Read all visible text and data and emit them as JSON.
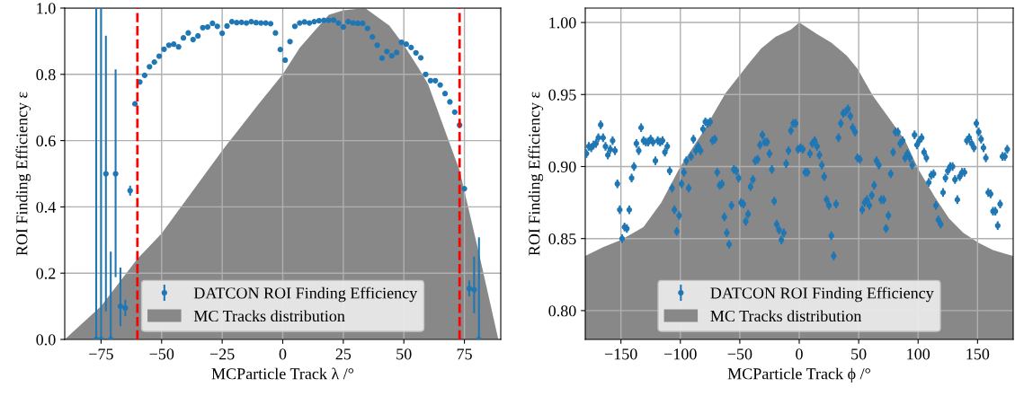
{
  "chart_data": [
    {
      "type": "scatter",
      "xlabel": "MCParticle Track λ /°",
      "ylabel": "ROI Finding Efficiency ε",
      "xlim": [
        -90,
        90
      ],
      "xticks": [
        {
          "value": -75,
          "label": "−75"
        },
        {
          "value": -50,
          "label": "−50"
        },
        {
          "value": -25,
          "label": "−25"
        },
        0,
        25,
        50,
        75
      ],
      "ylim": [
        0,
        1.0
      ],
      "yticks": [
        {
          "value": 0,
          "label": "0.0"
        },
        0.2,
        0.4,
        0.6,
        0.8,
        {
          "value": 1.0,
          "label": "1.0"
        }
      ],
      "grid": true,
      "legend": "bottom",
      "ref_lines": [
        {
          "axis": "x",
          "value": -60,
          "color": "#ff0000",
          "line_style": "dashed"
        },
        {
          "axis": "x",
          "value": 73,
          "color": "#ff0000",
          "line_style": "dashed"
        }
      ],
      "series": [
        {
          "type": "area",
          "name": "MC Tracks distribution",
          "color": "#888888",
          "x": [
            -90,
            -75,
            -60,
            -50,
            -25,
            -10,
            0,
            7,
            13,
            19,
            25,
            34,
            44,
            50,
            56,
            60,
            68,
            73,
            81,
            89
          ],
          "values": [
            0,
            0.1,
            0.243,
            0.32,
            0.57,
            0.71,
            0.8,
            0.88,
            0.93,
            0.98,
            0.993,
            1.0,
            0.947,
            0.888,
            0.82,
            0.77,
            0.61,
            0.51,
            0.26,
            0
          ]
        },
        {
          "name": "DATCON ROI Finding Efficiency",
          "color": "#1f77b4",
          "marker": "circle",
          "x": [
            -77,
            -75,
            -73,
            -71,
            -69,
            -67,
            -65,
            -63,
            -61,
            -59,
            -57,
            -55,
            -53,
            -51,
            -49,
            -47,
            -45,
            -43,
            -41,
            -39,
            -37,
            -35,
            -33,
            -31,
            -29,
            -27,
            -25,
            -23,
            -21,
            -19,
            -17,
            -15,
            -13,
            -11,
            -9,
            -7,
            -5,
            -3,
            -1,
            1,
            3,
            5,
            7,
            9,
            11,
            13,
            15,
            17,
            19,
            21,
            23,
            25,
            27,
            29,
            31,
            33,
            35,
            37,
            39,
            41,
            43,
            45,
            47,
            49,
            51,
            53,
            55,
            57,
            59,
            61,
            63,
            65,
            67,
            69,
            71,
            73,
            75,
            77,
            79,
            81
          ],
          "values": [
            0,
            0,
            0.5,
            0,
            0.5,
            0.1,
            0.095,
            0.449,
            0.711,
            0.777,
            0.797,
            0.823,
            0.837,
            0.855,
            0.876,
            0.888,
            0.891,
            0.883,
            0.91,
            0.925,
            0.905,
            0.916,
            0.941,
            0.943,
            0.954,
            0.945,
            0.924,
            0.946,
            0.959,
            0.956,
            0.957,
            0.955,
            0.959,
            0.956,
            0.955,
            0.955,
            0.953,
            0.925,
            0.875,
            0.843,
            0.899,
            0.945,
            0.955,
            0.958,
            0.955,
            0.959,
            0.962,
            0.963,
            0.963,
            0.964,
            0.955,
            0.943,
            0.959,
            0.955,
            0.954,
            0.954,
            0.939,
            0.913,
            0.888,
            0.849,
            0.869,
            0.856,
            0.866,
            0.897,
            0.891,
            0.881,
            0.865,
            0.85,
            0.8,
            0.781,
            0.781,
            0.768,
            0.742,
            0.717,
            0.686,
            0.647,
            0.455,
            0.154,
            0.15,
            0
          ],
          "errors": [
            [
              0,
              1
            ],
            [
              0,
              1
            ],
            [
              0.085,
              0.917
            ],
            [
              0,
              0.265
            ],
            [
              0.188,
              0.815
            ],
            [
              0.04,
              0.217
            ],
            0.025,
            0.015,
            null,
            null,
            null,
            null,
            null,
            null,
            null,
            null,
            null,
            null,
            null,
            null,
            null,
            null,
            null,
            null,
            null,
            null,
            null,
            null,
            null,
            null,
            null,
            null,
            null,
            null,
            null,
            null,
            null,
            null,
            null,
            null,
            null,
            null,
            null,
            null,
            null,
            null,
            null,
            null,
            null,
            null,
            null,
            null,
            null,
            null,
            null,
            null,
            null,
            null,
            null,
            null,
            null,
            null,
            null,
            null,
            null,
            null,
            null,
            null,
            null,
            null,
            null,
            null,
            null,
            null,
            null,
            null,
            null,
            0.024,
            [
              0.079,
              0.25
            ],
            [
              0,
              0.308
            ]
          ]
        }
      ]
    },
    {
      "type": "scatter",
      "xlabel": "MCParticle Track ϕ /°",
      "ylabel": "ROI Finding Efficiency ε",
      "xlim": [
        -180,
        180
      ],
      "xticks": [
        {
          "value": -150,
          "label": "−150"
        },
        {
          "value": -100,
          "label": "−100"
        },
        {
          "value": -50,
          "label": "−50"
        },
        0,
        50,
        100,
        150
      ],
      "ylim": [
        0.78,
        1.01
      ],
      "yticks": [
        {
          "value": 0.8,
          "label": "0.80"
        },
        0.85,
        {
          "value": 0.9,
          "label": "0.90"
        },
        0.95,
        {
          "value": 1.0,
          "label": "1.00"
        }
      ],
      "grid": true,
      "legend": "bottom",
      "series": [
        {
          "type": "area",
          "name": "MC Tracks distribution",
          "color": "#888888",
          "x": [
            -180,
            -165,
            -150,
            -131,
            -116,
            -100,
            -81,
            -62,
            -42,
            -32,
            -20,
            -7,
            0,
            15,
            27,
            40,
            49,
            62,
            77,
            89,
            101,
            114,
            126,
            138,
            151,
            163,
            175,
            180
          ],
          "values": [
            0.838,
            0.844,
            0.849,
            0.858,
            0.875,
            0.9,
            0.924,
            0.951,
            0.972,
            0.982,
            0.99,
            0.995,
            1.0,
            0.992,
            0.986,
            0.977,
            0.968,
            0.949,
            0.932,
            0.918,
            0.897,
            0.879,
            0.864,
            0.854,
            0.847,
            0.842,
            0.839,
            0.838
          ]
        },
        {
          "name": "DATCON ROI Finding Efficiency",
          "color": "#1f77b4",
          "marker": "circle",
          "x": [
            -179,
            -177,
            -175,
            -173,
            -171,
            -169,
            -167,
            -165,
            -163,
            -161,
            -159,
            -157,
            -155,
            -153,
            -151,
            -149,
            -147,
            -145,
            -143,
            -141,
            -139,
            -137,
            -135,
            -133,
            -131,
            -129,
            -127,
            -125,
            -123,
            -121,
            -119,
            -117,
            -115,
            -113,
            -111,
            -109,
            -107,
            -105,
            -103,
            -101,
            -99,
            -97,
            -95,
            -93,
            -91,
            -89,
            -87,
            -85,
            -83,
            -81,
            -79,
            -77,
            -75,
            -73,
            -71,
            -69,
            -67,
            -65,
            -63,
            -61,
            -59,
            -57,
            -55,
            -53,
            -51,
            -49,
            -47,
            -45,
            -43,
            -41,
            -39,
            -37,
            -35,
            -33,
            -31,
            -29,
            -27,
            -25,
            -23,
            -21,
            -19,
            -17,
            -15,
            -13,
            -11,
            -9,
            -7,
            -5,
            -3,
            -1,
            1,
            3,
            5,
            7,
            9,
            11,
            13,
            15,
            17,
            19,
            21,
            23,
            25,
            27,
            29,
            31,
            33,
            35,
            37,
            39,
            41,
            43,
            45,
            47,
            49,
            51,
            53,
            55,
            57,
            59,
            61,
            63,
            65,
            67,
            69,
            71,
            73,
            75,
            77,
            79,
            81,
            83,
            85,
            87,
            89,
            91,
            93,
            95,
            97,
            99,
            101,
            103,
            105,
            107,
            109,
            111,
            113,
            115,
            117,
            119,
            121,
            123,
            125,
            127,
            129,
            131,
            133,
            135,
            137,
            139,
            141,
            143,
            145,
            147,
            149,
            151,
            153,
            155,
            157,
            159,
            161,
            163,
            165,
            167,
            169,
            171,
            173,
            175
          ],
          "values": [
            0.909,
            0.914,
            0.913,
            0.915,
            0.916,
            0.92,
            0.929,
            0.92,
            0.914,
            0.908,
            0.912,
            0.918,
            0.911,
            0.888,
            0.87,
            0.85,
            0.858,
            0.857,
            0.87,
            0.892,
            0.9,
            0.916,
            0.911,
            0.927,
            0.918,
            0.917,
            0.917,
            0.919,
            0.917,
            0.904,
            0.918,
            0.917,
            0.918,
            0.91,
            0.914,
            0.897,
            0.885,
            0.87,
            0.855,
            0.866,
            0.888,
            0.896,
            0.904,
            0.885,
            0.907,
            0.919,
            0.911,
            0.914,
            0.911,
            0.926,
            0.931,
            0.93,
            0.931,
            0.918,
            0.919,
            0.896,
            0.887,
            0.888,
            0.865,
            0.854,
            0.846,
            0.873,
            0.898,
            0.897,
            0.892,
            0.875,
            0.874,
            0.862,
            0.867,
            0.886,
            0.891,
            0.904,
            0.905,
            0.915,
            0.922,
            0.917,
            0.917,
            0.909,
            0.898,
            0.876,
            0.86,
            0.856,
            0.849,
            0.854,
            0.902,
            0.911,
            0.925,
            0.93,
            0.93,
            0.912,
            0.913,
            0.912,
            0.896,
            0.896,
            0.909,
            0.916,
            0.918,
            0.914,
            0.908,
            0.901,
            0.893,
            0.877,
            0.873,
            0.852,
            0.838,
            0.874,
            0.92,
            0.93,
            0.937,
            0.938,
            0.94,
            0.935,
            0.927,
            0.924,
            0.906,
            0.905,
            0.87,
            0.875,
            0.877,
            0.873,
            0.88,
            0.887,
            0.904,
            0.901,
            0.877,
            0.877,
            0.857,
            0.866,
            0.895,
            0.91,
            0.924,
            0.924,
            0.916,
            0.918,
            0.906,
            0.909,
            0.906,
            0.901,
            0.922,
            0.915,
            0.918,
            0.92,
            0.91,
            0.906,
            0.889,
            0.894,
            0.895,
            0.873,
            0.863,
            0.86,
            0.882,
            0.892,
            0.897,
            0.9,
            0.9,
            0.891,
            0.877,
            0.893,
            0.896,
            0.896,
            0.918,
            0.92,
            0.916,
            0.913,
            0.93,
            0.924,
            0.919,
            0.913,
            0.906,
            0.882,
            0.881,
            0.869,
            0.869,
            0.859,
            0.874,
            0.907,
            0.907,
            0.912
          ],
          "errors": [
            0.003,
            0.003,
            0.003,
            0.003,
            0.003,
            0.003,
            0.003,
            0.003,
            0.003,
            0.003,
            0.003,
            0.003,
            0.003,
            0.003,
            0.003,
            0.003,
            0.003,
            0.003,
            0.003,
            0.003,
            0.003,
            0.003,
            0.003,
            0.003,
            0.003,
            0.003,
            0.003,
            0.003,
            0.003,
            0.003,
            0.003,
            0.003,
            0.003,
            0.003,
            0.003,
            0.003,
            0.003,
            0.003,
            0.003,
            0.003,
            0.003,
            0.003,
            0.003,
            0.003,
            0.003,
            0.003,
            0.003,
            0.003,
            0.003,
            0.003,
            0.003,
            0.003,
            0.003,
            0.003,
            0.003,
            0.003,
            0.003,
            0.003,
            0.003,
            0.003,
            0.003,
            0.003,
            0.003,
            0.003,
            0.003,
            0.003,
            0.003,
            0.003,
            0.003,
            0.003,
            0.003,
            0.003,
            0.003,
            0.003,
            0.003,
            0.003,
            0.003,
            0.003,
            0.003,
            0.003,
            0.003,
            0.003,
            0.003,
            0.003,
            0.003,
            0.003,
            0.003,
            0.003,
            0.003,
            0.003,
            0.003,
            0.003,
            0.003,
            0.003,
            0.003,
            0.003,
            0.003,
            0.003,
            0.003,
            0.003,
            0.003,
            0.003,
            0.003,
            0.003,
            0.003,
            0.003,
            0.003,
            0.003,
            0.003,
            0.003,
            0.003,
            0.003,
            0.003,
            0.003,
            0.003,
            0.003,
            0.003,
            0.003,
            0.003,
            0.003,
            0.003,
            0.003,
            0.003,
            0.003,
            0.003,
            0.003,
            0.003,
            0.003,
            0.003,
            0.003,
            0.003,
            0.003,
            0.003,
            0.003,
            0.003,
            0.003,
            0.003,
            0.003,
            0.003,
            0.003,
            0.003,
            0.003,
            0.003,
            0.003,
            0.003,
            0.003,
            0.003,
            0.003,
            0.003,
            0.003,
            0.003,
            0.003,
            0.003,
            0.003,
            0.003,
            0.003,
            0.003,
            0.003,
            0.003,
            0.003,
            0.003,
            0.003,
            0.003,
            0.003,
            0.003,
            0.003,
            0.003,
            0.003,
            0.003,
            0.003,
            0.003,
            0.003,
            0.003,
            0.003,
            0.003,
            0.003,
            0.003,
            0.003
          ]
        }
      ]
    }
  ]
}
